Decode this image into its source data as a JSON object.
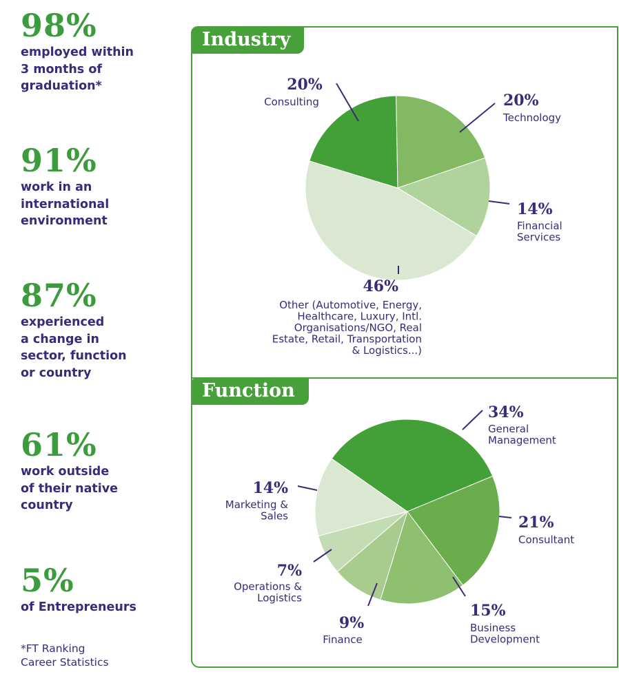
{
  "stats": [
    {
      "value": "98%",
      "lines": [
        "employed within",
        "3 months of",
        "graduation*"
      ]
    },
    {
      "value": "91%",
      "lines": [
        "work in an",
        "international",
        "environment"
      ]
    },
    {
      "value": "87%",
      "lines": [
        "experienced",
        "a change in",
        "sector, function",
        "or country"
      ]
    },
    {
      "value": "61%",
      "lines": [
        "work outside",
        "of their native",
        "country"
      ]
    },
    {
      "value": "5%",
      "lines": [
        "of Entrepreneurs"
      ]
    }
  ],
  "footnote": [
    "*FT Ranking",
    "Career Statistics"
  ],
  "colors": {
    "brand_green": "#48a03a",
    "text_purple": "#3b2a7a",
    "stat_green": "#3c9b3c"
  },
  "chart_data": [
    {
      "type": "pie",
      "title": "Industry",
      "slices": [
        {
          "pct_label": "20%",
          "value": 20,
          "name_lines": [
            "Consulting"
          ],
          "color": "#43a038"
        },
        {
          "pct_label": "20%",
          "value": 20,
          "name_lines": [
            "Technology"
          ],
          "color": "#83b963"
        },
        {
          "pct_label": "14%",
          "value": 14,
          "name_lines": [
            "Financial",
            "Services"
          ],
          "color": "#b0d39c"
        },
        {
          "pct_label": "46%",
          "value": 46,
          "name_lines": [
            "Other (Automotive, Energy,",
            "Healthcare, Luxury, Intl.",
            "Organisations/NGO, Real",
            "Estate, Retail, Transportation",
            "& Logistics...)"
          ],
          "color": "#dae8d2"
        }
      ]
    },
    {
      "type": "pie",
      "title": "Function",
      "slices": [
        {
          "pct_label": "34%",
          "value": 34,
          "name_lines": [
            "General",
            "Management"
          ],
          "color": "#43a038"
        },
        {
          "pct_label": "21%",
          "value": 21,
          "name_lines": [
            "Consultant"
          ],
          "color": "#69ad4d"
        },
        {
          "pct_label": "15%",
          "value": 15,
          "name_lines": [
            "Business",
            "Development"
          ],
          "color": "#8fc06f"
        },
        {
          "pct_label": "9%",
          "value": 9,
          "name_lines": [
            "Finance"
          ],
          "color": "#a7cc8d"
        },
        {
          "pct_label": "7%",
          "value": 7,
          "name_lines": [
            "Operations &",
            "Logistics"
          ],
          "color": "#c3dcb4"
        },
        {
          "pct_label": "14%",
          "value": 14,
          "name_lines": [
            "Marketing &",
            "Sales"
          ],
          "color": "#dae8d2"
        }
      ]
    }
  ]
}
